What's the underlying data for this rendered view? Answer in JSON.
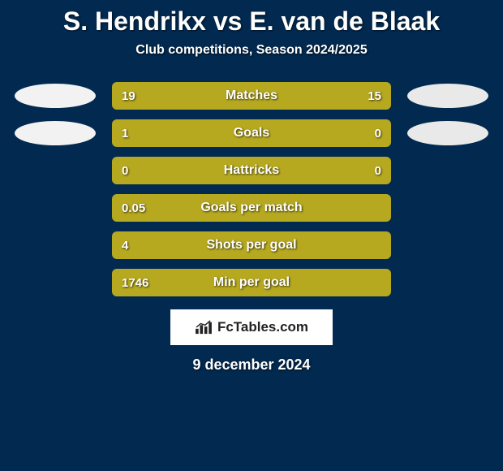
{
  "title": "S. Hendrikx vs E. van de Blaak",
  "title_fontsize": 32,
  "title_color": "#ffffff",
  "subtitle": "Club competitions, Season 2024/2025",
  "subtitle_fontsize": 16,
  "subtitle_color": "#ffffff",
  "background_color": "#02294f",
  "bar_track_width": 344,
  "bar_track_height": 34,
  "bar_track_radius": 6,
  "track_color": "#0c335a",
  "left_fill_color": "#b6a81f",
  "right_fill_color": "#b6a81f",
  "label_fontsize": 16,
  "value_fontsize": 15,
  "text_color": "#ffffff",
  "badge_left_color": "#f2f2f2",
  "badge_right_color": "#e9e9e9",
  "rows": [
    {
      "label": "Matches",
      "left_val": "19",
      "right_val": "15",
      "left_pct": 55.88,
      "right_pct": 44.12,
      "show_badges": true
    },
    {
      "label": "Goals",
      "left_val": "1",
      "right_val": "0",
      "left_pct": 76.0,
      "right_pct": 24.0,
      "show_badges": true
    },
    {
      "label": "Hattricks",
      "left_val": "0",
      "right_val": "0",
      "left_pct": 100.0,
      "right_pct": 0.0,
      "show_badges": false
    },
    {
      "label": "Goals per match",
      "left_val": "0.05",
      "right_val": "",
      "left_pct": 100.0,
      "right_pct": 0.0,
      "show_badges": false
    },
    {
      "label": "Shots per goal",
      "left_val": "4",
      "right_val": "",
      "left_pct": 100.0,
      "right_pct": 0.0,
      "show_badges": false
    },
    {
      "label": "Min per goal",
      "left_val": "1746",
      "right_val": "",
      "left_pct": 100.0,
      "right_pct": 0.0,
      "show_badges": false
    }
  ],
  "logo": {
    "text": "FcTables.com",
    "box_bg": "#ffffff",
    "text_color": "#222222",
    "fontsize": 17
  },
  "date": "9 december 2024",
  "date_fontsize": 18
}
